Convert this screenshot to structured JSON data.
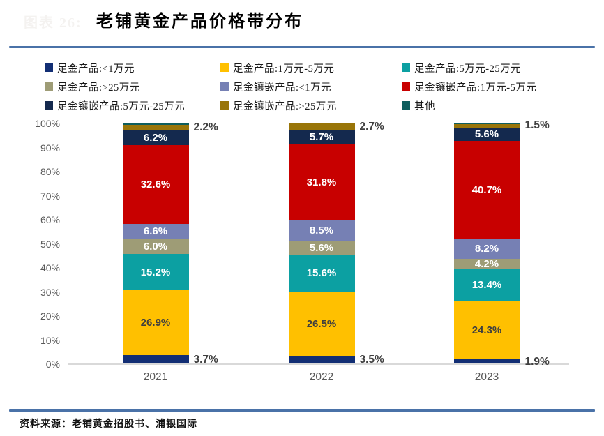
{
  "header": {
    "figure_prefix": "图表 26:",
    "title": "老铺黄金产品价格带分布"
  },
  "footer": {
    "source": "资料来源：老铺黄金招股书、浦银国际"
  },
  "colors": {
    "rule": "#4a72a8",
    "axis_text": "#595959",
    "axis_line": "#d9d9d9",
    "label_light": "#ffffff",
    "label_dark": "#3f3f3f"
  },
  "chart_data": {
    "type": "bar",
    "stacked": true,
    "title": "老铺黄金产品价格带分布",
    "categories": [
      "2021",
      "2022",
      "2023"
    ],
    "xlabel": "",
    "ylabel": "",
    "ylim": [
      0,
      100
    ],
    "grid": false,
    "legend_position": "top",
    "y_ticks": [
      "100%",
      "90%",
      "80%",
      "70%",
      "60%",
      "50%",
      "40%",
      "30%",
      "20%",
      "10%",
      "0%"
    ],
    "series": [
      {
        "name": "足金产品:<1万元",
        "color": "#122e74",
        "values": [
          3.7,
          3.5,
          1.9
        ],
        "labels": [
          "3.7%",
          "3.5%",
          "1.9%"
        ],
        "label_pos": "right",
        "label_style": "dark"
      },
      {
        "name": "足金产品:1万元-5万元",
        "color": "#ffc000",
        "values": [
          26.9,
          26.5,
          24.3
        ],
        "labels": [
          "26.9%",
          "26.5%",
          "24.3%"
        ],
        "label_pos": "inside",
        "label_style": "dark"
      },
      {
        "name": "足金产品:5万元-25万元",
        "color": "#0ca0a2",
        "values": [
          15.2,
          15.6,
          13.4
        ],
        "labels": [
          "15.2%",
          "15.6%",
          "13.4%"
        ],
        "label_pos": "inside",
        "label_style": "light"
      },
      {
        "name": "足金产品:>25万元",
        "color": "#9e9c76",
        "values": [
          6.0,
          5.6,
          4.2
        ],
        "labels": [
          "6.0%",
          "5.6%",
          "4.2%"
        ],
        "label_pos": "inside",
        "label_style": "light"
      },
      {
        "name": "足金镶嵌产品:<1万元",
        "color": "#7680b4",
        "values": [
          6.6,
          8.5,
          8.2
        ],
        "labels": [
          "6.6%",
          "8.5%",
          "8.2%"
        ],
        "label_pos": "inside",
        "label_style": "light"
      },
      {
        "name": "足金镶嵌产品:1万元-5万元",
        "color": "#c80000",
        "values": [
          32.6,
          31.8,
          40.7
        ],
        "labels": [
          "32.6%",
          "31.8%",
          "40.7%"
        ],
        "label_pos": "inside",
        "label_style": "light"
      },
      {
        "name": "足金镶嵌产品:5万元-25万元",
        "color": "#14294e",
        "values": [
          6.2,
          5.7,
          5.6
        ],
        "labels": [
          "6.2%",
          "5.7%",
          "5.6%"
        ],
        "label_pos": "inside",
        "label_style": "light"
      },
      {
        "name": "足金镶嵌产品:>25万元",
        "color": "#997509",
        "values": [
          2.2,
          2.7,
          1.5
        ],
        "labels": [
          "2.2%",
          "2.7%",
          "1.5%"
        ],
        "label_pos": "right",
        "label_style": "dark"
      },
      {
        "name": "其他",
        "color": "#0e5e5e",
        "values": [
          0.6,
          0.1,
          0.2
        ],
        "labels": [
          "",
          "",
          ""
        ],
        "label_pos": "none",
        "label_style": "light"
      }
    ]
  }
}
